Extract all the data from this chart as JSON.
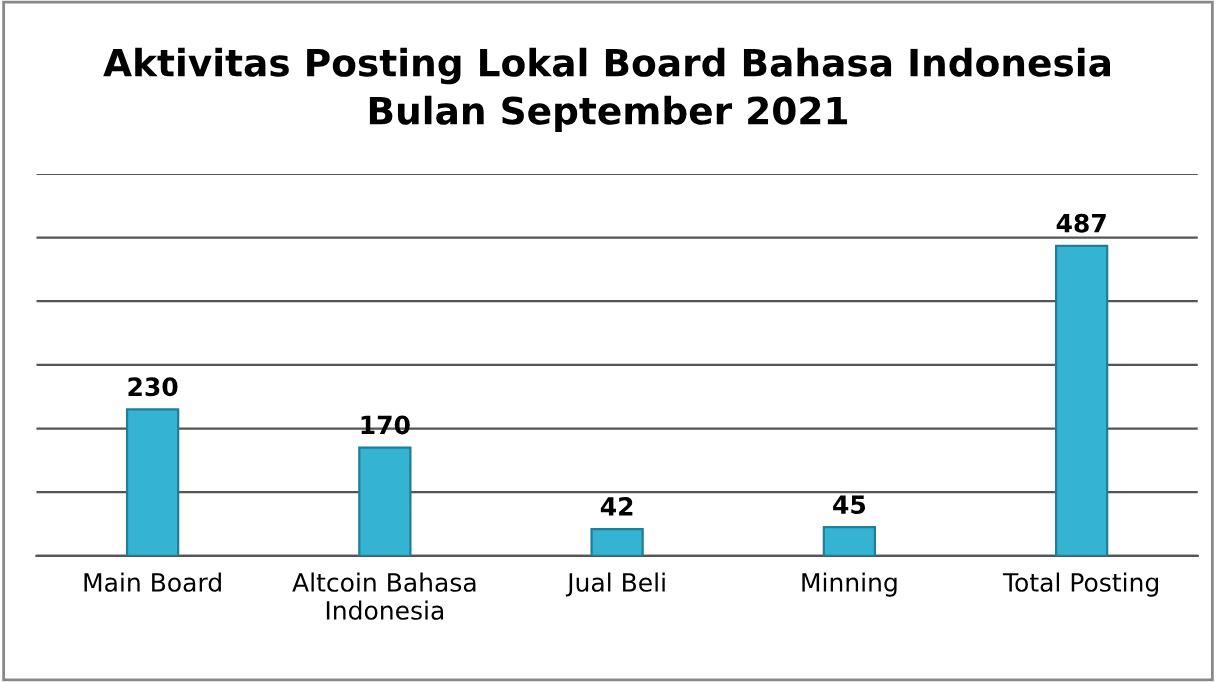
{
  "chart_data": {
    "type": "bar",
    "title": "Aktivitas Posting Lokal Board Bahasa Indonesia\nBulan September 2021",
    "categories": [
      "Main Board",
      "Altcoin Bahasa\nIndonesia",
      "Jual Beli",
      "Minning",
      "Total Posting"
    ],
    "values": [
      230,
      170,
      42,
      45,
      487
    ],
    "color": "#35b3d3",
    "ylim": [
      0,
      600
    ],
    "yticks": [
      {
        "value": 0,
        "label": null
      },
      {
        "value": 100,
        "label": null
      },
      {
        "value": 200,
        "label": null
      },
      {
        "value": 300,
        "label": null
      },
      {
        "value": 400,
        "label": null
      },
      {
        "value": 500,
        "label": null
      },
      {
        "value": 600,
        "label": null
      }
    ],
    "grid": "y",
    "data_labels": true,
    "tick_labels": "x"
  }
}
